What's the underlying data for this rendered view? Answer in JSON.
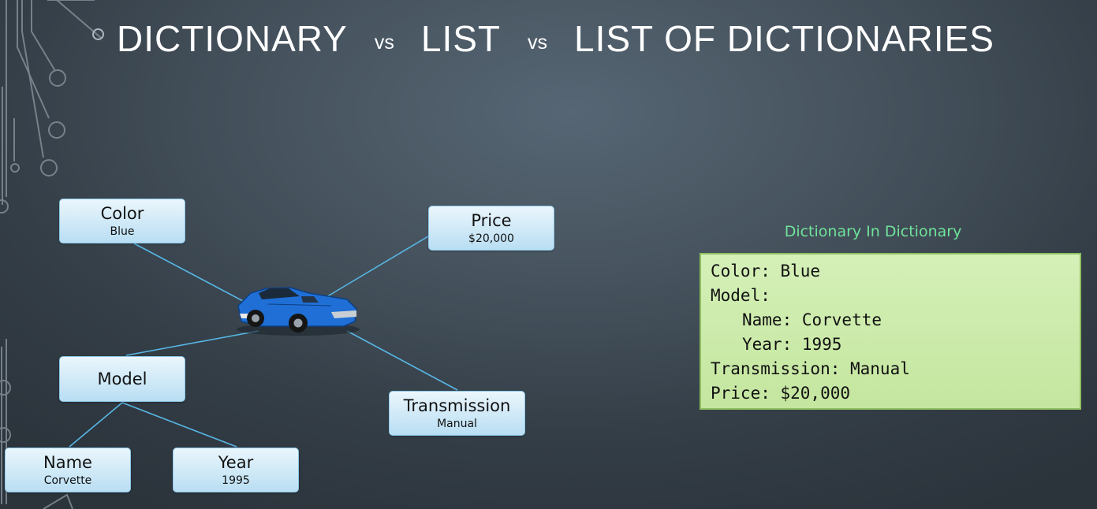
{
  "title": {
    "part1": "DICTIONARY",
    "vs1": "vs",
    "part2": "LIST",
    "vs2": "vs",
    "part3": "LIST OF DICTIONARIES"
  },
  "diagram": {
    "center_icon": "car-icon",
    "car_color": "#1f6fd6",
    "link_color": "#57b6e4",
    "nodes": {
      "color": {
        "key": "Color",
        "value": "Blue"
      },
      "price": {
        "key": "Price",
        "value": "$20,000"
      },
      "model": {
        "key": "Model"
      },
      "transmission": {
        "key": "Transmission",
        "value": "Manual"
      },
      "name": {
        "key": "Name",
        "value": "Corvette"
      },
      "year": {
        "key": "Year",
        "value": "1995"
      }
    }
  },
  "dictionary_panel": {
    "heading": "Dictionary In Dictionary",
    "lines": [
      "Color: Blue",
      "Model:",
      "Name: Corvette",
      "Year: 1995",
      "Transmission: Manual",
      "Price: $20,000"
    ]
  }
}
